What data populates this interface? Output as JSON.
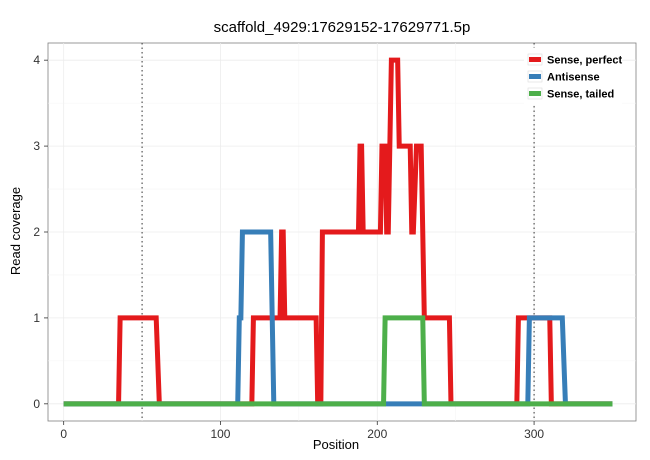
{
  "chart_data": {
    "type": "line",
    "title": "scaffold_4929:17629152-17629771.5p",
    "xlabel": "Position",
    "ylabel": "Read coverage",
    "xlim": [
      -10,
      365
    ],
    "ylim": [
      -0.2,
      4.2
    ],
    "x_ticks": [
      0,
      100,
      200,
      300
    ],
    "x_tick_labels": [
      "0",
      "100",
      "200",
      "300"
    ],
    "y_ticks": [
      0,
      1,
      2,
      3,
      4
    ],
    "y_tick_labels": [
      "0",
      "1",
      "2",
      "3",
      "4"
    ],
    "vlines": [
      50,
      300
    ],
    "grid": true,
    "legend_position": "top-right",
    "series": [
      {
        "name": "Sense, perfect",
        "color": "#e41a1c",
        "points": [
          [
            0,
            0
          ],
          [
            35,
            0
          ],
          [
            36,
            1
          ],
          [
            59,
            1
          ],
          [
            61,
            0
          ],
          [
            120,
            0
          ],
          [
            121,
            1
          ],
          [
            138,
            1
          ],
          [
            139,
            2
          ],
          [
            140,
            2
          ],
          [
            141,
            1
          ],
          [
            161,
            1
          ],
          [
            162,
            0
          ],
          [
            164,
            0
          ],
          [
            165,
            2
          ],
          [
            188,
            2
          ],
          [
            189,
            3
          ],
          [
            190,
            3
          ],
          [
            191,
            2
          ],
          [
            202,
            2
          ],
          [
            203,
            3
          ],
          [
            205,
            3
          ],
          [
            206,
            2
          ],
          [
            207,
            2
          ],
          [
            209,
            4
          ],
          [
            213,
            4
          ],
          [
            214,
            3
          ],
          [
            221,
            3
          ],
          [
            222,
            2
          ],
          [
            223,
            2
          ],
          [
            225,
            3
          ],
          [
            228,
            3
          ],
          [
            230,
            1
          ],
          [
            246,
            1
          ],
          [
            247,
            0
          ],
          [
            289,
            0
          ],
          [
            290,
            1
          ],
          [
            310,
            1
          ],
          [
            311,
            0
          ],
          [
            350,
            0
          ]
        ]
      },
      {
        "name": "Antisense",
        "color": "#377eb8",
        "points": [
          [
            0,
            0
          ],
          [
            111,
            0
          ],
          [
            112,
            1
          ],
          [
            113,
            1
          ],
          [
            114,
            2
          ],
          [
            132,
            2
          ],
          [
            134,
            0
          ],
          [
            296,
            0
          ],
          [
            297,
            1
          ],
          [
            318,
            1
          ],
          [
            320,
            0
          ],
          [
            350,
            0
          ]
        ]
      },
      {
        "name": "Sense, tailed",
        "color": "#4daf4a",
        "points": [
          [
            0,
            0
          ],
          [
            204,
            0
          ],
          [
            205,
            1
          ],
          [
            229,
            1
          ],
          [
            230,
            0
          ],
          [
            350,
            0
          ]
        ]
      }
    ]
  }
}
